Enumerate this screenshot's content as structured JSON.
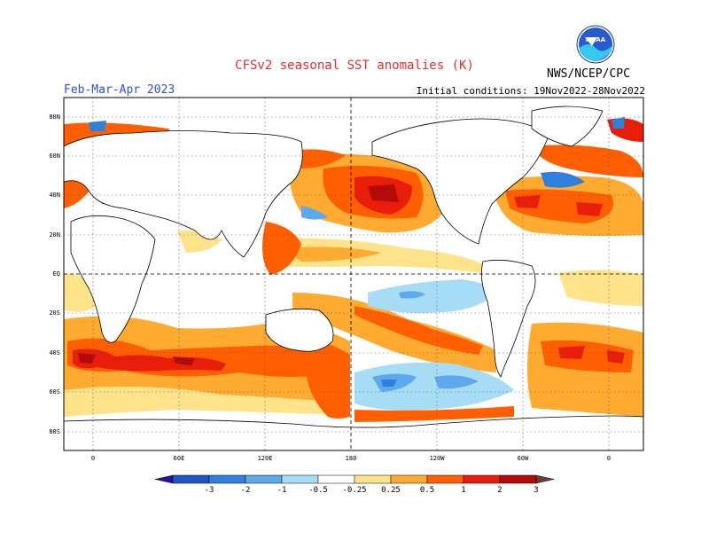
{
  "header": {
    "title": "CFSv2 seasonal SST anomalies (K)",
    "season": "Feb-Mar-Apr 2023",
    "initial_conditions": "Initial conditions: 19Nov2022-28Nov2022",
    "agency": "NWS/NCEP/CPC",
    "logo_text": "NOAA"
  },
  "map": {
    "lat_ticks": [
      "80N",
      "60N",
      "40N",
      "20N",
      "EQ",
      "20S",
      "40S",
      "60S",
      "80S"
    ],
    "lon_ticks": [
      "0",
      "60E",
      "120E",
      "180",
      "120W",
      "60W",
      "0"
    ],
    "lat_range": [
      -90,
      90
    ],
    "lon_range": [
      -20,
      380
    ]
  },
  "colorbar": {
    "labels": [
      "-3",
      "-2",
      "-1",
      "-0.5",
      "-0.25",
      "0.25",
      "0.5",
      "1",
      "2",
      "3"
    ],
    "colors": [
      "#2a10a0",
      "#1f55c8",
      "#2f7fdc",
      "#5ea8ee",
      "#a6dcf5",
      "#ffffff",
      "#ffe38a",
      "#ffaa30",
      "#ff5f00",
      "#e81e0a",
      "#b40a0a",
      "#6e3c32"
    ]
  },
  "anomaly_colors": {
    "light_yellow": "#ffe38a",
    "orange": "#ffaa30",
    "dark_orange": "#ff5f00",
    "red": "#e81e0a",
    "dark_red": "#b40a0a",
    "light_blue": "#a6dcf5",
    "blue": "#5ea8ee",
    "dark_blue": "#2f7fdc"
  }
}
